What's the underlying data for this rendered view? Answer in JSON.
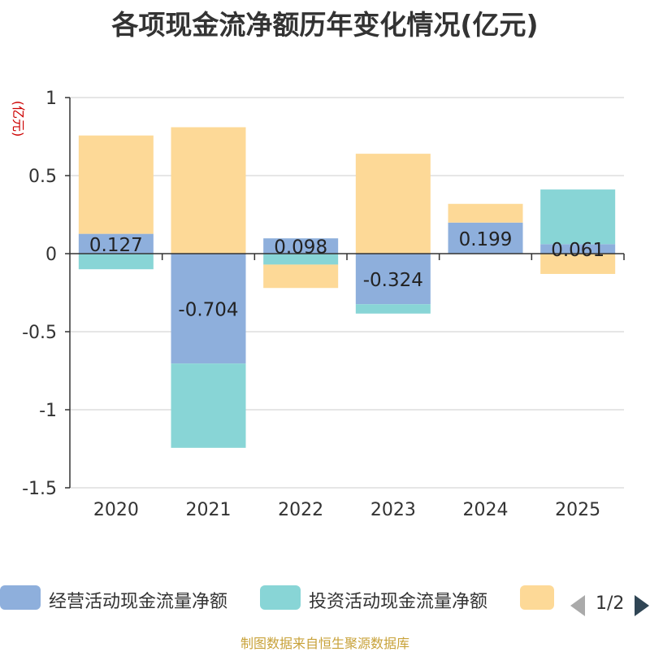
{
  "chart_data": {
    "type": "bar",
    "stacked": true,
    "title": "各项现金流净额历年变化情况(亿元)",
    "ylabel": "(亿元)",
    "ylim": [
      -1.5,
      1
    ],
    "yticks": [
      1,
      0.5,
      0,
      -0.5,
      -1,
      -1.5
    ],
    "ytick_labels": [
      "1",
      "0.5",
      "0",
      "-0.5",
      "-1",
      "-1.5"
    ],
    "categories": [
      "2020",
      "2021",
      "2022",
      "2023",
      "2024",
      "2025"
    ],
    "series": [
      {
        "name": "经营活动现金流量净额",
        "color": "#8eafdc",
        "values": [
          0.127,
          -0.704,
          0.098,
          -0.324,
          0.199,
          0.061
        ],
        "labels": [
          "0.127",
          "-0.704",
          "0.098",
          "-0.324",
          "0.199",
          "0.061"
        ]
      },
      {
        "name": "投资活动现金流量净额",
        "color": "#88d5d6",
        "values": [
          -0.1,
          -0.54,
          -0.07,
          -0.06,
          0,
          0.35
        ]
      },
      {
        "name": "",
        "color": "#fdd997",
        "values": [
          0.63,
          0.81,
          -0.15,
          0.64,
          0.12,
          -0.13
        ]
      }
    ],
    "legend_position": "bottom",
    "legend_page": "1/2",
    "grid": true
  },
  "footer": "制图数据来自恒生聚源数据库"
}
